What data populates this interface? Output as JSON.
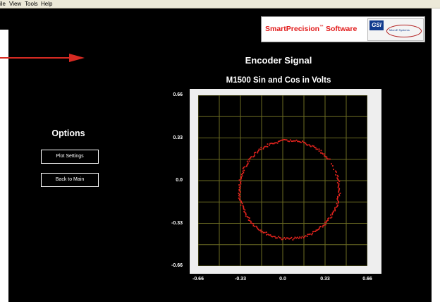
{
  "menu": {
    "file": "ile",
    "view": "View",
    "tools": "Tools",
    "help": "Help"
  },
  "logo": {
    "brand": "SmartPrecision",
    "tm": "™",
    "suffix": " Software",
    "gsi": "GSI",
    "subbrand": "MicroE Systems"
  },
  "header": {
    "title": "Encoder Signal"
  },
  "options": {
    "title": "Options",
    "plot_settings_label": "Plot Settings",
    "back_label": "Back to Main"
  },
  "chart_data": {
    "type": "scatter",
    "title": "M1500 Sin and Cos in Volts",
    "xlabel": "",
    "ylabel": "",
    "xlim": [
      -0.66,
      0.66
    ],
    "ylim": [
      -0.66,
      0.66
    ],
    "grid": true,
    "xticks": [
      "-0.66",
      "-0.33",
      "0.0",
      "0.33",
      "0.66"
    ],
    "yticks": [
      "0.66",
      "0.33",
      "0.0",
      "-0.33",
      "-0.66"
    ],
    "ellipse": {
      "cx": 0.05,
      "cy": -0.07,
      "rx": 0.39,
      "ry": 0.38,
      "point_count": 260
    },
    "point_color": "#e8241e",
    "grid_color": "#6b6b22"
  }
}
